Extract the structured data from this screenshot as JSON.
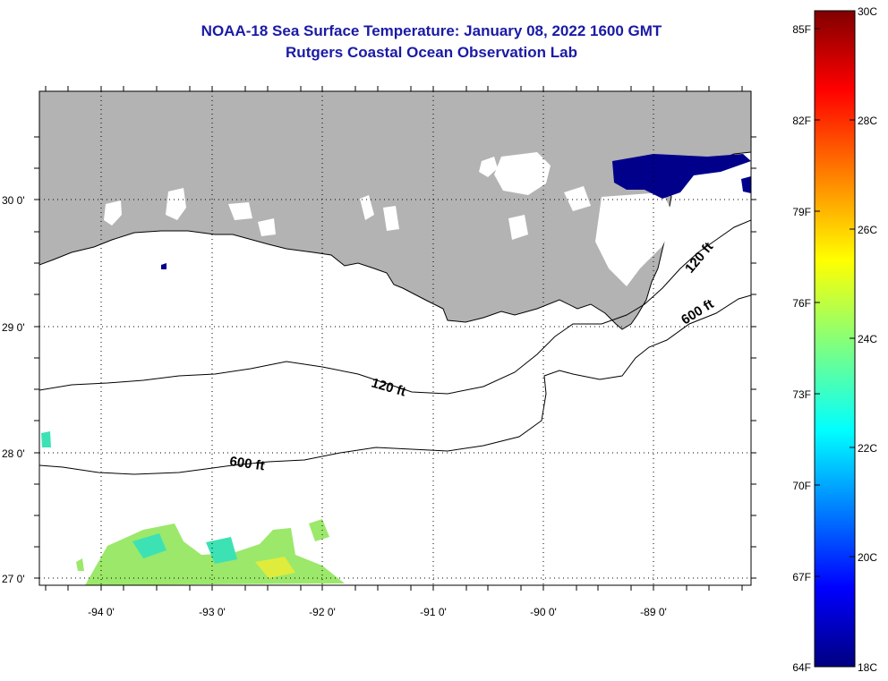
{
  "title": "NOAA-18 Sea Surface Temperature:  January 08, 2022 1600 GMT",
  "subtitle": "Rutgers Coastal Ocean Observation Lab",
  "map": {
    "lon_ticks": [
      "-94 0'",
      "-93 0'",
      "-92 0'",
      "-91 0'",
      "-90 0'",
      "-89 0'"
    ],
    "lat_ticks": [
      "30 0'",
      "29 0'",
      "28 0'",
      "27 0'"
    ],
    "contour_labels": [
      {
        "text": "120 ft"
      },
      {
        "text": "600 ft"
      },
      {
        "text": "120 ft"
      },
      {
        "text": "600 ft"
      }
    ],
    "colors": {
      "land": "#b3b3b3",
      "ocean_nodata": "#ffffff",
      "sst_cold_inland": "#00008b",
      "sst_offshore_green": "#9be86b",
      "sst_offshore_teal": "#3ce2b4"
    }
  },
  "colorbar": {
    "fahrenheit_labels": [
      "85F",
      "82F",
      "79F",
      "76F",
      "73F",
      "70F",
      "67F",
      "64F"
    ],
    "celsius_labels": [
      "30C",
      "28C",
      "26C",
      "24C",
      "22C",
      "20C",
      "18C"
    ],
    "colormap": "jet"
  }
}
